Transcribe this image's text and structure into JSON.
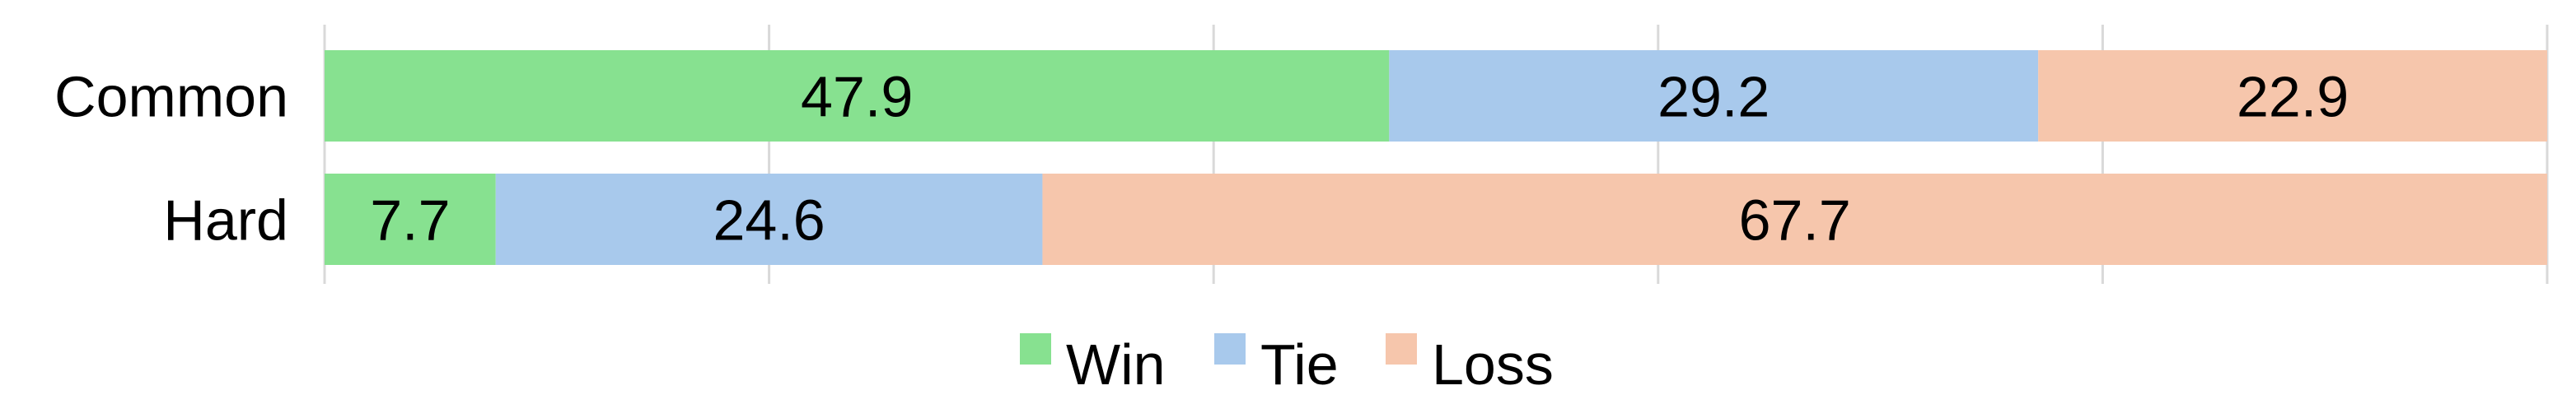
{
  "chart_data": {
    "type": "bar",
    "orientation": "horizontal",
    "stacked": true,
    "categories": [
      "Common",
      "Hard"
    ],
    "series": [
      {
        "name": "Win",
        "values": [
          47.9,
          7.7
        ],
        "color": "#87e190"
      },
      {
        "name": "Tie",
        "values": [
          29.2,
          24.6
        ],
        "color": "#a8c9ec"
      },
      {
        "name": "Loss",
        "values": [
          22.9,
          67.7
        ],
        "color": "#f6c6ac"
      }
    ],
    "xlim": [
      0,
      100
    ],
    "grid": true,
    "legend": "bottom"
  }
}
